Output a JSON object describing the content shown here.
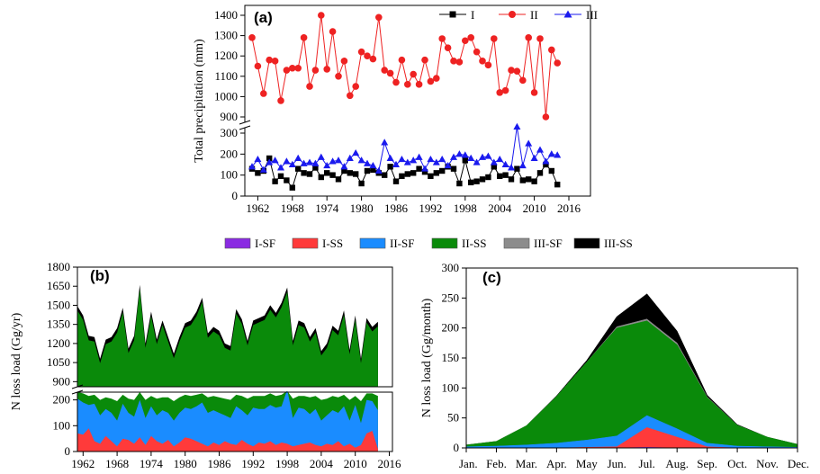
{
  "chart_data": [
    {
      "type": "line",
      "panel_label": "(a)",
      "ylabel": "Total precipitation (mm)",
      "x_ticks": [
        "1962",
        "1968",
        "1974",
        "1980",
        "1986",
        "1992",
        "1998",
        "2004",
        "2010",
        "2016"
      ],
      "y_ticks_upper": [
        "900",
        "1000",
        "1100",
        "1200",
        "1300",
        "1400"
      ],
      "y_ticks_lower": [
        "0",
        "100",
        "200",
        "300"
      ],
      "x": [
        1961,
        1962,
        1963,
        1964,
        1965,
        1966,
        1967,
        1968,
        1969,
        1970,
        1971,
        1972,
        1973,
        1974,
        1975,
        1976,
        1977,
        1978,
        1979,
        1980,
        1981,
        1982,
        1983,
        1984,
        1985,
        1986,
        1987,
        1988,
        1989,
        1990,
        1991,
        1992,
        1993,
        1994,
        1995,
        1996,
        1997,
        1998,
        1999,
        2000,
        2001,
        2002,
        2003,
        2004,
        2005,
        2006,
        2007,
        2008,
        2009,
        2010,
        2011,
        2012,
        2013,
        2014
      ],
      "series": [
        {
          "name": "I",
          "color": "#000000",
          "marker": "square",
          "values": [
            130,
            110,
            120,
            180,
            70,
            95,
            75,
            40,
            130,
            110,
            105,
            135,
            90,
            110,
            100,
            80,
            120,
            110,
            105,
            60,
            120,
            125,
            110,
            100,
            140,
            70,
            95,
            105,
            110,
            130,
            115,
            95,
            110,
            120,
            140,
            130,
            60,
            170,
            65,
            70,
            80,
            90,
            140,
            95,
            100,
            80,
            130,
            75,
            80,
            70,
            110,
            150,
            120,
            55
          ]
        },
        {
          "name": "II",
          "color": "#ee2222",
          "marker": "circle",
          "values": [
            1290,
            1150,
            1015,
            1180,
            1175,
            980,
            1130,
            1140,
            1140,
            1290,
            1050,
            1130,
            1400,
            1135,
            1320,
            1100,
            1175,
            1005,
            1050,
            1220,
            1200,
            1185,
            1390,
            1130,
            1115,
            1070,
            1180,
            1060,
            1110,
            1060,
            1180,
            1075,
            1090,
            1285,
            1240,
            1175,
            1170,
            1275,
            1290,
            1220,
            1175,
            1155,
            1285,
            1020,
            1030,
            1130,
            1125,
            1080,
            1290,
            1020,
            1285,
            900,
            1230,
            1165
          ]
        },
        {
          "name": "III",
          "color": "#1a1aee",
          "marker": "triangle",
          "values": [
            140,
            175,
            125,
            160,
            170,
            135,
            165,
            150,
            180,
            155,
            160,
            155,
            185,
            145,
            165,
            170,
            140,
            180,
            205,
            170,
            155,
            145,
            120,
            255,
            180,
            150,
            175,
            160,
            170,
            185,
            130,
            175,
            160,
            175,
            145,
            185,
            200,
            195,
            180,
            160,
            185,
            190,
            160,
            175,
            150,
            135,
            330,
            145,
            250,
            180,
            220,
            165,
            200,
            195
          ]
        }
      ]
    },
    {
      "type": "area",
      "panel_label": "(b)",
      "ylabel": "N loss load (Gg/yr)",
      "x_ticks": [
        "1962",
        "1968",
        "1974",
        "1980",
        "1986",
        "1992",
        "1998",
        "2004",
        "2010",
        "2016"
      ],
      "y_ticks_upper": [
        "900",
        "1050",
        "1200",
        "1350",
        "1500",
        "1650",
        "1800"
      ],
      "y_ticks_lower": [
        "0",
        "100",
        "200"
      ],
      "x": [
        1961,
        1962,
        1963,
        1964,
        1965,
        1966,
        1967,
        1968,
        1969,
        1970,
        1971,
        1972,
        1973,
        1974,
        1975,
        1976,
        1977,
        1978,
        1979,
        1980,
        1981,
        1982,
        1983,
        1984,
        1985,
        1986,
        1987,
        1988,
        1989,
        1990,
        1991,
        1992,
        1993,
        1994,
        1995,
        1996,
        1997,
        1998,
        1999,
        2000,
        2001,
        2002,
        2003,
        2004,
        2005,
        2006,
        2007,
        2008,
        2009,
        2010,
        2011,
        2012,
        2013,
        2014
      ],
      "total": [
        1495,
        1420,
        1260,
        1250,
        1080,
        1230,
        1250,
        1320,
        1480,
        1160,
        1260,
        1660,
        1200,
        1450,
        1230,
        1380,
        1250,
        1120,
        1250,
        1360,
        1380,
        1450,
        1560,
        1280,
        1330,
        1300,
        1200,
        1180,
        1470,
        1390,
        1220,
        1380,
        1400,
        1420,
        1500,
        1440,
        1520,
        1640,
        1220,
        1380,
        1360,
        1250,
        1320,
        1140,
        1200,
        1340,
        1300,
        1460,
        1150,
        1420,
        1080,
        1400,
        1330,
        1370
      ],
      "series_lower": [
        {
          "name": "I-SS",
          "color": "#ff3a3a",
          "values": [
            70,
            65,
            90,
            40,
            30,
            60,
            40,
            20,
            50,
            45,
            30,
            55,
            25,
            60,
            40,
            30,
            45,
            20,
            35,
            55,
            50,
            40,
            30,
            20,
            35,
            25,
            40,
            30,
            25,
            45,
            30,
            20,
            35,
            30,
            40,
            25,
            35,
            30,
            20,
            25,
            30,
            35,
            25,
            20,
            30,
            25,
            40,
            20,
            30,
            15,
            25,
            70,
            80,
            10
          ]
        },
        {
          "name": "II-SF",
          "color": "#1a8cff",
          "values": [
            205,
            190,
            180,
            185,
            140,
            165,
            150,
            120,
            185,
            150,
            135,
            200,
            130,
            175,
            140,
            160,
            150,
            120,
            150,
            170,
            165,
            175,
            190,
            150,
            160,
            150,
            140,
            130,
            175,
            160,
            140,
            170,
            165,
            165,
            180,
            170,
            175,
            240,
            130,
            170,
            165,
            145,
            165,
            120,
            140,
            160,
            150,
            175,
            120,
            180,
            110,
            200,
            195,
            160
          ]
        },
        {
          "name": "II-SS",
          "color": "#0a8a0a",
          "values": [
            230,
            225,
            215,
            220,
            200,
            210,
            205,
            195,
            220,
            205,
            200,
            230,
            200,
            215,
            205,
            210,
            210,
            195,
            210,
            220,
            215,
            220,
            225,
            210,
            215,
            210,
            205,
            200,
            220,
            215,
            205,
            215,
            215,
            215,
            225,
            215,
            220,
            235,
            205,
            215,
            215,
            210,
            215,
            200,
            205,
            215,
            210,
            220,
            200,
            215,
            195,
            225,
            225,
            215
          ]
        }
      ],
      "legend": [
        {
          "name": "I-SF",
          "color": "#8a2be2"
        },
        {
          "name": "I-SS",
          "color": "#ff3a3a"
        },
        {
          "name": "II-SF",
          "color": "#1a8cff"
        },
        {
          "name": "II-SS",
          "color": "#0a8a0a"
        },
        {
          "name": "III-SF",
          "color": "#8c8c8c"
        },
        {
          "name": "III-SS",
          "color": "#000000"
        }
      ]
    },
    {
      "type": "area",
      "panel_label": "(c)",
      "ylabel": "N loss load (Gg/month)",
      "categories": [
        "Jan.",
        "Feb.",
        "Mar.",
        "Apr.",
        "May",
        "Jun.",
        "Jul.",
        "Aug.",
        "Sep.",
        "Oct.",
        "Nov.",
        "Dec."
      ],
      "y_ticks": [
        "0",
        "50",
        "100",
        "150",
        "200",
        "250",
        "300"
      ],
      "ylim": [
        0,
        300
      ],
      "series": [
        {
          "name": "I-SF",
          "color": "#8a2be2",
          "values": [
            0,
            0,
            0,
            0,
            0,
            0,
            1,
            0,
            0,
            0,
            0,
            0
          ]
        },
        {
          "name": "I-SS",
          "color": "#ff3a3a",
          "values": [
            0,
            0,
            0,
            0,
            1,
            2,
            33,
            18,
            2,
            0,
            0,
            0
          ]
        },
        {
          "name": "II-SF",
          "color": "#1a8cff",
          "values": [
            2,
            3,
            5,
            8,
            12,
            18,
            20,
            14,
            6,
            3,
            2,
            1
          ]
        },
        {
          "name": "II-SS",
          "color": "#0a8a0a",
          "values": [
            3,
            8,
            32,
            78,
            130,
            180,
            158,
            140,
            76,
            35,
            16,
            5
          ]
        },
        {
          "name": "III-SF",
          "color": "#8c8c8c",
          "values": [
            0,
            0,
            0,
            0,
            0,
            2,
            3,
            3,
            1,
            0,
            0,
            0
          ]
        },
        {
          "name": "III-SS",
          "color": "#000000",
          "values": [
            0,
            0,
            0,
            1,
            3,
            17,
            42,
            20,
            3,
            1,
            0,
            0
          ]
        }
      ]
    }
  ]
}
